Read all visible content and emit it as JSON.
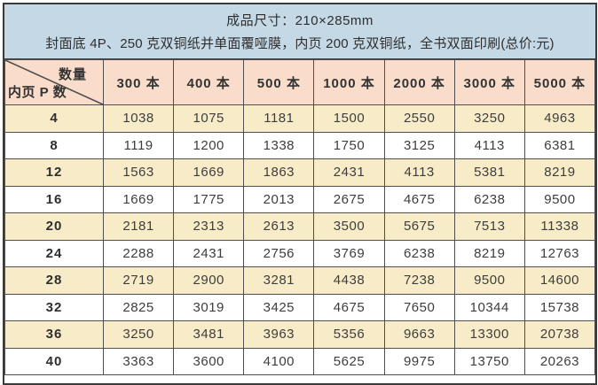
{
  "header": {
    "line1": "成品尺寸：210×285mm",
    "line2": "封面底 4P、250 克双铜纸并单面覆哑膜，内页 200 克双铜纸，全书双面印刷(总价:元)"
  },
  "table": {
    "corner": {
      "top_right": "数量",
      "bottom_left": "内页 P 数"
    },
    "columns": [
      "300 本",
      "400 本",
      "500 本",
      "1000 本",
      "2000 本",
      "3000 本",
      "5000 本"
    ],
    "rows": [
      {
        "pages": "4",
        "values": [
          "1038",
          "1075",
          "1181",
          "1500",
          "2550",
          "3250",
          "4963"
        ]
      },
      {
        "pages": "8",
        "values": [
          "1119",
          "1200",
          "1338",
          "1750",
          "3125",
          "4113",
          "6381"
        ]
      },
      {
        "pages": "12",
        "values": [
          "1563",
          "1669",
          "1863",
          "2431",
          "4113",
          "5381",
          "8219"
        ]
      },
      {
        "pages": "16",
        "values": [
          "1669",
          "1775",
          "2013",
          "2675",
          "4675",
          "6238",
          "9500"
        ]
      },
      {
        "pages": "20",
        "values": [
          "2181",
          "2313",
          "2613",
          "3500",
          "5675",
          "7513",
          "11338"
        ]
      },
      {
        "pages": "24",
        "values": [
          "2288",
          "2431",
          "2756",
          "3769",
          "6238",
          "8219",
          "12763"
        ]
      },
      {
        "pages": "28",
        "values": [
          "2719",
          "2900",
          "3281",
          "4438",
          "7238",
          "9500",
          "14600"
        ]
      },
      {
        "pages": "32",
        "values": [
          "2825",
          "3019",
          "3425",
          "4675",
          "7650",
          "10344",
          "15738"
        ]
      },
      {
        "pages": "36",
        "values": [
          "3250",
          "3481",
          "3963",
          "5356",
          "9663",
          "13300",
          "20738"
        ]
      },
      {
        "pages": "40",
        "values": [
          "3363",
          "3600",
          "4100",
          "5625",
          "9975",
          "13750",
          "20263"
        ]
      }
    ]
  },
  "colors": {
    "note_bg": "#c5d8e5",
    "column_header_bg": "#f9dcca",
    "row_alt_bg": "#f8ecc8",
    "row_bg": "#ffffff",
    "grid_line": "#4f4f4f",
    "border_dark": "#3a3a3a",
    "text": "#3d3d3d"
  }
}
